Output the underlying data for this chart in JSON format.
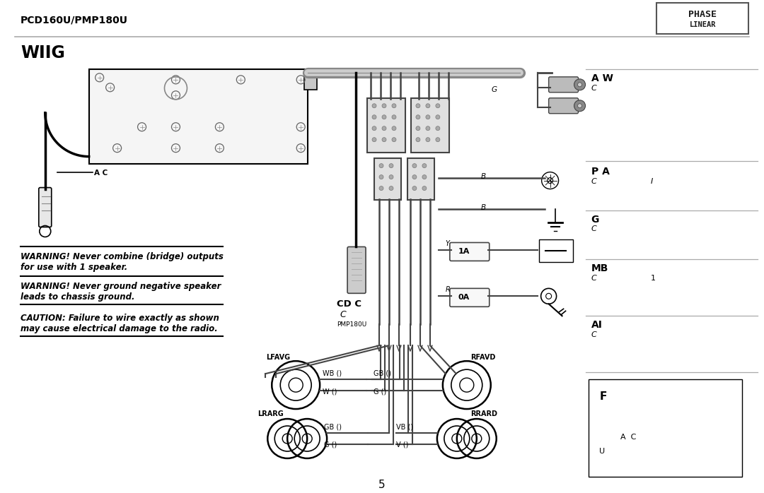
{
  "bg_color": "#ffffff",
  "header_model": "PCD160U/PMP180U",
  "section": "WIIG",
  "page": "5",
  "warning1_line1": "WARNING! Never combine (bridge) outputs",
  "warning1_line2": "for use with 1 speaker.",
  "warning2_line1": "WARNING! Never ground negative speaker",
  "warning2_line2": "leads to chassis ground.",
  "caution_line1": "CAUTION: Failure to wire exactly as shown",
  "caution_line2": "may cause electrical damage to the radio.",
  "cdc_label1": "CD C",
  "cdc_label2": "C",
  "pmp_label": "PMP180U",
  "right_aw_bold": "A W",
  "right_aw_sub": "C",
  "right_pa_bold": "P A",
  "right_pa_sub": "C",
  "right_pa_extra": "I",
  "right_g_bold": "G",
  "right_g_sub": "C",
  "right_mb_bold": "MB",
  "right_mb_sub": "C",
  "right_mb_extra": "1",
  "right_ai_bold": "AI",
  "right_ai_sub": "C",
  "fuse_label": "F",
  "fuse_sub1": "A  C",
  "fuse_sub2": "U",
  "conn_g": "G",
  "conn_b1": "B",
  "conn_b2": "B",
  "fuse1_color": "Y",
  "fuse1_val": "1A",
  "fuse2_color": "R",
  "fuse2_val": "0A",
  "ac_label": "A C",
  "speaker_fl_label": "LFAVG",
  "speaker_fl_wb": "WB ()",
  "speaker_fl_w": "W ()",
  "speaker_rl_label": "LRARG",
  "speaker_rl_gb": "GB ()",
  "speaker_rl_g": "G ()",
  "speaker_fr_label": "RFAVD",
  "speaker_fr_gb": "GB ()",
  "speaker_fr_g": "G ()",
  "speaker_rr_label": "RRARD",
  "speaker_rr_vb": "VB ()",
  "speaker_rr_v": "V ()"
}
